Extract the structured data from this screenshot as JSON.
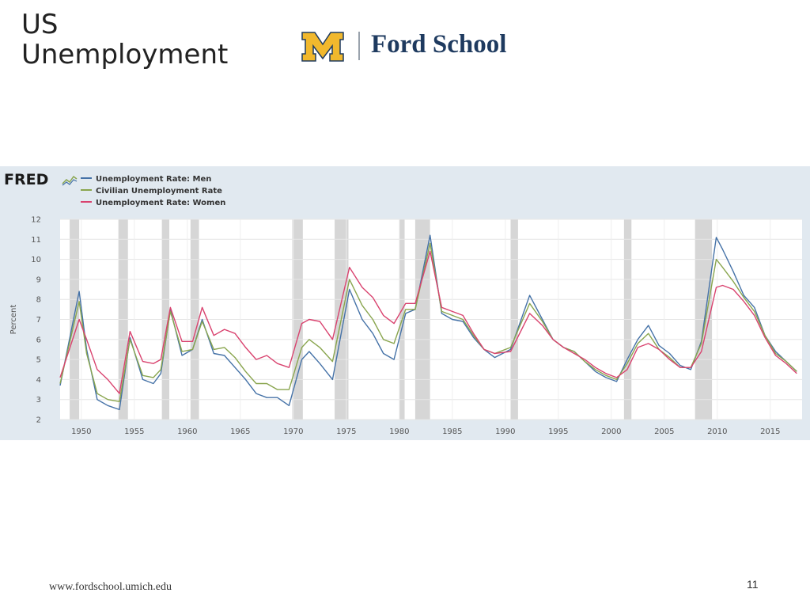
{
  "slide": {
    "title_line1": "US",
    "title_line2": "Unemployment",
    "logo_text": "Ford School",
    "footer_url": "www.fordschool.umich.edu",
    "page_number": "11"
  },
  "colors": {
    "men": "#4572a7",
    "civilian": "#89a54e",
    "women": "#d9436f",
    "recession": "#d6d6d6",
    "plot_bg": "#ffffff",
    "panel_bg": "#e1e9f0",
    "logo_gold": "#f1b82d",
    "logo_blue": "#1e3a5f"
  },
  "chart_data": {
    "type": "line",
    "source_logo": "FRED",
    "ylabel": "Percent",
    "xlabel": "",
    "xlim": [
      1948,
      2018
    ],
    "ylim": [
      2,
      12
    ],
    "yticks": [
      2,
      3,
      4,
      5,
      6,
      7,
      8,
      9,
      10,
      11,
      12
    ],
    "xticks": [
      1950,
      1955,
      1960,
      1965,
      1970,
      1975,
      1980,
      1985,
      1990,
      1995,
      2000,
      2005,
      2010,
      2015
    ],
    "grid": true,
    "legend_position": "top-left",
    "recessions": [
      [
        1948.9,
        1949.8
      ],
      [
        1953.5,
        1954.4
      ],
      [
        1957.6,
        1958.3
      ],
      [
        1960.3,
        1961.1
      ],
      [
        1969.9,
        1970.9
      ],
      [
        1973.9,
        1975.2
      ],
      [
        1980.0,
        1980.5
      ],
      [
        1981.5,
        1982.9
      ],
      [
        1990.5,
        1991.2
      ],
      [
        2001.2,
        2001.9
      ],
      [
        2007.9,
        2009.5
      ]
    ],
    "series": [
      {
        "name": "Unemployment Rate: Men",
        "color_key": "men",
        "x": [
          1948,
          1949.8,
          1950.5,
          1951.5,
          1952.5,
          1953.6,
          1954.6,
          1955.8,
          1956.8,
          1957.5,
          1958.4,
          1959.5,
          1960.5,
          1961.4,
          1962.5,
          1963.5,
          1964.5,
          1965.5,
          1966.5,
          1967.5,
          1968.5,
          1969.6,
          1970.8,
          1971.5,
          1972.5,
          1973.7,
          1975.3,
          1976.5,
          1977.5,
          1978.5,
          1979.5,
          1980.6,
          1981.5,
          1982.9,
          1984,
          1985,
          1986,
          1987,
          1988,
          1989,
          1990.5,
          1992.3,
          1993.5,
          1994.5,
          1995.5,
          1996.5,
          1997.5,
          1998.5,
          1999.5,
          2000.5,
          2001.5,
          2002.5,
          2003.5,
          2004.5,
          2005.5,
          2006.5,
          2007.5,
          2008.5,
          2009.9,
          2010.5,
          2011.5,
          2012.5,
          2013.5,
          2014.5,
          2015.5,
          2016.5,
          2017.5
        ],
        "y": [
          3.7,
          8.4,
          5.5,
          3.0,
          2.7,
          2.5,
          6.1,
          4.0,
          3.8,
          4.3,
          7.5,
          5.2,
          5.5,
          7.0,
          5.3,
          5.2,
          4.6,
          4.0,
          3.3,
          3.1,
          3.1,
          2.7,
          5.0,
          5.4,
          4.8,
          4.0,
          8.5,
          7.0,
          6.3,
          5.3,
          5.0,
          7.3,
          7.5,
          11.2,
          7.3,
          7.0,
          6.9,
          6.1,
          5.5,
          5.1,
          5.5,
          8.2,
          7.0,
          6.0,
          5.6,
          5.4,
          4.9,
          4.4,
          4.1,
          3.9,
          5.0,
          6.0,
          6.7,
          5.7,
          5.3,
          4.7,
          4.5,
          5.9,
          11.1,
          10.5,
          9.4,
          8.2,
          7.6,
          6.2,
          5.4,
          4.9,
          4.4
        ]
      },
      {
        "name": "Civilian Unemployment Rate",
        "color_key": "civilian",
        "x": [
          1948,
          1949.8,
          1950.5,
          1951.5,
          1952.5,
          1953.6,
          1954.6,
          1955.8,
          1956.8,
          1957.5,
          1958.4,
          1959.5,
          1960.5,
          1961.4,
          1962.5,
          1963.5,
          1964.5,
          1965.5,
          1966.5,
          1967.5,
          1968.5,
          1969.6,
          1970.8,
          1971.5,
          1972.5,
          1973.7,
          1975.3,
          1976.5,
          1977.5,
          1978.5,
          1979.5,
          1980.6,
          1981.5,
          1982.9,
          1984,
          1985,
          1986,
          1987,
          1988,
          1989,
          1990.5,
          1992.3,
          1993.5,
          1994.5,
          1995.5,
          1996.5,
          1997.5,
          1998.5,
          1999.5,
          2000.5,
          2001.5,
          2002.5,
          2003.5,
          2004.5,
          2005.5,
          2006.5,
          2007.5,
          2008.5,
          2009.9,
          2010.5,
          2011.5,
          2012.5,
          2013.5,
          2014.5,
          2015.5,
          2016.5,
          2017.5
        ],
        "y": [
          3.8,
          7.9,
          5.3,
          3.3,
          3.0,
          2.9,
          6.0,
          4.2,
          4.1,
          4.5,
          7.4,
          5.4,
          5.5,
          6.9,
          5.5,
          5.6,
          5.1,
          4.4,
          3.8,
          3.8,
          3.5,
          3.5,
          5.6,
          6.0,
          5.6,
          4.9,
          9.0,
          7.7,
          7.0,
          6.0,
          5.8,
          7.5,
          7.5,
          10.8,
          7.4,
          7.2,
          7.0,
          6.2,
          5.5,
          5.3,
          5.6,
          7.8,
          6.9,
          6.0,
          5.6,
          5.4,
          4.9,
          4.5,
          4.2,
          4.0,
          4.8,
          5.8,
          6.3,
          5.5,
          5.1,
          4.6,
          4.6,
          5.8,
          10.0,
          9.6,
          8.9,
          8.1,
          7.4,
          6.2,
          5.3,
          4.9,
          4.4
        ]
      },
      {
        "name": "Unemployment Rate: Women",
        "color_key": "women",
        "x": [
          1948,
          1949.8,
          1950.5,
          1951.5,
          1952.5,
          1953.6,
          1954.6,
          1955.8,
          1956.8,
          1957.5,
          1958.4,
          1959.5,
          1960.5,
          1961.4,
          1962.5,
          1963.5,
          1964.5,
          1965.5,
          1966.5,
          1967.5,
          1968.5,
          1969.6,
          1970.8,
          1971.5,
          1972.5,
          1973.7,
          1975.3,
          1976.5,
          1977.5,
          1978.5,
          1979.5,
          1980.6,
          1981.5,
          1982.9,
          1984,
          1985,
          1986,
          1987,
          1988,
          1989,
          1990.5,
          1992.3,
          1993.5,
          1994.5,
          1995.5,
          1996.5,
          1997.5,
          1998.5,
          1999.5,
          2000.5,
          2001.5,
          2002.5,
          2003.5,
          2004.5,
          2005.5,
          2006.5,
          2007.5,
          2008.5,
          2009.9,
          2010.5,
          2011.5,
          2012.5,
          2013.5,
          2014.5,
          2015.5,
          2016.5,
          2017.5
        ],
        "y": [
          4.1,
          7.0,
          6.0,
          4.5,
          4.0,
          3.3,
          6.4,
          4.9,
          4.8,
          5.0,
          7.6,
          5.9,
          5.9,
          7.6,
          6.2,
          6.5,
          6.3,
          5.6,
          5.0,
          5.2,
          4.8,
          4.6,
          6.8,
          7.0,
          6.9,
          6.0,
          9.6,
          8.6,
          8.1,
          7.2,
          6.8,
          7.8,
          7.8,
          10.4,
          7.6,
          7.4,
          7.2,
          6.3,
          5.5,
          5.3,
          5.4,
          7.3,
          6.7,
          6.0,
          5.6,
          5.3,
          5.0,
          4.6,
          4.3,
          4.1,
          4.5,
          5.6,
          5.8,
          5.5,
          5.0,
          4.6,
          4.6,
          5.4,
          8.6,
          8.7,
          8.5,
          7.9,
          7.2,
          6.1,
          5.2,
          4.8,
          4.3
        ]
      }
    ]
  }
}
